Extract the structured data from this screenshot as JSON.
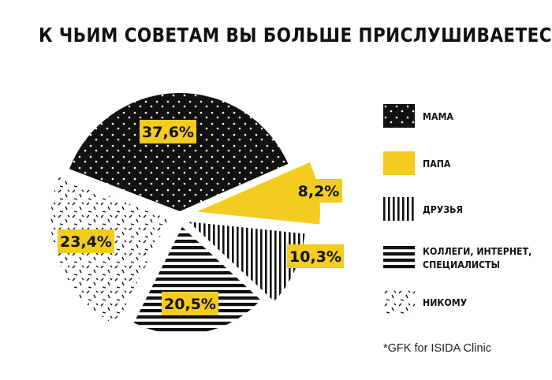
{
  "chart_data": {
    "type": "pie",
    "title": "К ЧЬИМ СОВЕТАМ ВЫ БОЛЬШЕ ПРИСЛУШИВАЕТЕСЬ?",
    "series": [
      {
        "name": "МАМА",
        "value": 37.6,
        "label": "37,6%",
        "pattern": "dots-black"
      },
      {
        "name": "ПАПА",
        "value": 8.2,
        "label": "8,2%",
        "pattern": "solid-yellow"
      },
      {
        "name": "ДРУЗЬЯ",
        "value": 10.3,
        "label": "10,3%",
        "pattern": "vertical-stripes"
      },
      {
        "name": "КОЛЛЕГИ, ИНТЕРНЕТ, СПЕЦИАЛИСТЫ",
        "value": 20.5,
        "label": "20,5%",
        "pattern": "horizontal-stripes"
      },
      {
        "name": "НИКОМУ",
        "value": 23.4,
        "label": "23,4%",
        "pattern": "dashes-white"
      }
    ],
    "legend_position": "right",
    "label_background_color": "#f2cc1e"
  },
  "legend": {
    "items": [
      {
        "label": "МАМА",
        "pattern": "dots-black"
      },
      {
        "label": "ПАПА",
        "pattern": "solid-yellow"
      },
      {
        "label": "ДРУЗЬЯ",
        "pattern": "vertical-stripes"
      },
      {
        "label_line1": "КОЛЛЕГИ, ИНТЕРНЕТ,",
        "label_line2": "СПЕЦИАЛИСТЫ",
        "pattern": "horizontal-stripes"
      },
      {
        "label": "НИКОМУ",
        "pattern": "dashes-white"
      }
    ]
  },
  "source": "*GFK for ISIDA Clinic",
  "colors": {
    "yellow": "#f2cc1e",
    "black": "#111111"
  }
}
